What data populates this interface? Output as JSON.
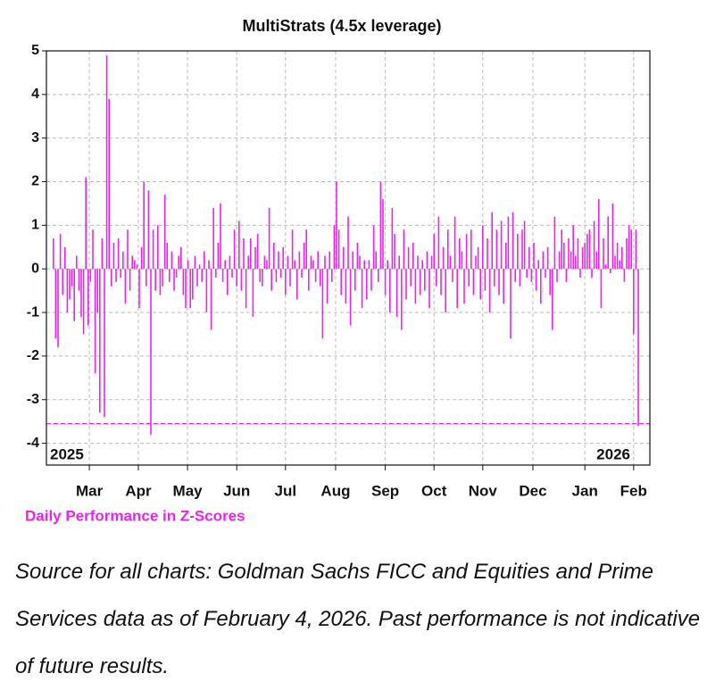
{
  "chart_data": {
    "type": "bar",
    "title": "MultiStrats (4.5x leverage)",
    "axis_label": "Daily Performance in Z-Scores",
    "year_labels": [
      "2025",
      "2026"
    ],
    "source": "Source for all charts: Goldman Sachs FICC and Equities and Prime Services data as of February 4, 2026. Past performance is not indicative of future results.",
    "color": "#ee22ee",
    "reference_line": -3.55,
    "grid": true,
    "xlim": [
      0,
      260
    ],
    "ylim": [
      -4.5,
      5
    ],
    "yticks": [
      -4,
      -3,
      -2,
      -1,
      0,
      1,
      2,
      3,
      4,
      5
    ],
    "xticks": [
      {
        "value": 18.5,
        "label": "Mar"
      },
      {
        "value": 39.6,
        "label": "Apr"
      },
      {
        "value": 60.8,
        "label": "May"
      },
      {
        "value": 82,
        "label": "Jun"
      },
      {
        "value": 103,
        "label": "Jul"
      },
      {
        "value": 124.6,
        "label": "Aug"
      },
      {
        "value": 146,
        "label": "Sep"
      },
      {
        "value": 167,
        "label": "Oct"
      },
      {
        "value": 188,
        "label": "Nov"
      },
      {
        "value": 209.6,
        "label": "Dec"
      },
      {
        "value": 232,
        "label": "Jan"
      },
      {
        "value": 253,
        "label": "Feb"
      }
    ],
    "x": [
      3,
      4,
      5,
      6,
      7,
      8,
      9,
      10,
      11,
      12,
      13,
      14,
      15,
      16,
      17,
      18,
      19,
      20,
      21,
      22,
      23,
      24,
      25,
      26,
      27,
      28,
      29,
      30,
      31,
      32,
      33,
      34,
      35,
      36,
      37,
      38,
      39,
      40,
      41,
      42,
      43,
      44,
      45,
      46,
      47,
      48,
      49,
      50,
      51,
      52,
      53,
      54,
      55,
      56,
      57,
      58,
      59,
      60,
      61,
      62,
      63,
      64,
      65,
      66,
      67,
      68,
      69,
      70,
      71,
      72,
      73,
      74,
      75,
      76,
      77,
      78,
      79,
      80,
      81,
      82,
      83,
      84,
      85,
      86,
      87,
      88,
      89,
      90,
      91,
      92,
      93,
      94,
      95,
      96,
      97,
      98,
      99,
      100,
      101,
      102,
      103,
      104,
      105,
      106,
      107,
      108,
      109,
      110,
      111,
      112,
      113,
      114,
      115,
      116,
      117,
      118,
      119,
      120,
      121,
      122,
      123,
      124,
      125,
      126,
      127,
      128,
      129,
      130,
      131,
      132,
      133,
      134,
      135,
      136,
      137,
      138,
      139,
      140,
      141,
      142,
      143,
      144,
      145,
      146,
      147,
      148,
      149,
      150,
      151,
      152,
      153,
      154,
      155,
      156,
      157,
      158,
      159,
      160,
      161,
      162,
      163,
      164,
      165,
      166,
      167,
      168,
      169,
      170,
      171,
      172,
      173,
      174,
      175,
      176,
      177,
      178,
      179,
      180,
      181,
      182,
      183,
      184,
      185,
      186,
      187,
      188,
      189,
      190,
      191,
      192,
      193,
      194,
      195,
      196,
      197,
      198,
      199,
      200,
      201,
      202,
      203,
      204,
      205,
      206,
      207,
      208,
      209,
      210,
      211,
      212,
      213,
      214,
      215,
      216,
      217,
      218,
      219,
      220,
      221,
      222,
      223,
      224,
      225,
      226,
      227,
      228,
      229,
      230,
      231,
      232,
      233,
      234,
      235,
      236,
      237,
      238,
      239,
      240,
      241,
      242,
      243,
      244,
      245,
      246,
      247,
      248,
      249,
      250,
      251,
      252,
      253,
      254,
      255
    ],
    "values": [
      0.7,
      -1.6,
      -1.8,
      0.8,
      -0.6,
      0.5,
      -1.0,
      -0.7,
      -0.4,
      -1.2,
      0.3,
      -0.5,
      -1.1,
      -1.5,
      2.1,
      -1.3,
      -0.3,
      0.9,
      -2.4,
      -1.0,
      -3.3,
      0.7,
      -3.4,
      4.9,
      3.9,
      -0.4,
      0.6,
      -0.3,
      0.7,
      -0.2,
      0.4,
      -0.8,
      0.9,
      -0.5,
      0.3,
      0.2,
      0.1,
      -0.9,
      0.5,
      2.0,
      -0.4,
      1.8,
      -3.8,
      0.9,
      -0.5,
      1.0,
      -0.6,
      -0.4,
      1.7,
      0.6,
      -0.3,
      0.4,
      -0.5,
      -0.2,
      0.3,
      0.5,
      -0.6,
      -0.9,
      0.2,
      -0.9,
      -0.7,
      0.3,
      -0.4,
      0.1,
      -0.3,
      0.4,
      -1.0,
      0.2,
      -1.4,
      1.4,
      -0.2,
      0.6,
      1.5,
      -0.3,
      0.2,
      -0.6,
      0.3,
      -0.2,
      0.9,
      -0.4,
      1.1,
      -0.5,
      0.7,
      -0.9,
      0.3,
      0.7,
      -1.1,
      0.5,
      0.8,
      -0.3,
      -0.4,
      0.3,
      0.2,
      1.4,
      -0.5,
      0.6,
      -0.3,
      0.4,
      -0.2,
      0.5,
      -0.6,
      0.3,
      -0.4,
      0.9,
      0.2,
      -0.7,
      0.4,
      -0.2,
      0.6,
      0.9,
      -0.5,
      0.3,
      0.2,
      -0.3,
      0.4,
      -0.4,
      -1.6,
      0.3,
      -0.8,
      0.4,
      -0.3,
      1.0,
      2.0,
      0.9,
      -0.6,
      0.5,
      -0.8,
      1.2,
      -1.3,
      0.4,
      -0.5,
      0.6,
      0.3,
      -0.9,
      0.2,
      -0.7,
      0.2,
      -0.5,
      1.0,
      0.4,
      -0.3,
      2.0,
      1.6,
      -0.6,
      0.2,
      -1.0,
      1.4,
      0.8,
      -1.1,
      0.3,
      -1.4,
      0.9,
      -0.7,
      0.5,
      -0.4,
      0.6,
      -0.8,
      0.3,
      -0.6,
      0.2,
      -0.5,
      0.4,
      -0.9,
      0.3,
      0.8,
      -0.4,
      1.2,
      -0.6,
      0.5,
      -1.0,
      0.9,
      0.3,
      -0.3,
      1.2,
      -0.9,
      0.7,
      0.4,
      -0.8,
      0.8,
      -0.4,
      0.9,
      -0.6,
      0.3,
      0.5,
      -0.7,
      1.0,
      -0.5,
      0.7,
      -1.0,
      1.3,
      -0.4,
      0.9,
      -0.6,
      1.1,
      -0.8,
      0.6,
      1.2,
      -1.6,
      1.3,
      -0.3,
      0.8,
      -0.4,
      0.9,
      1.1,
      -0.2,
      0.5,
      -0.3,
      0.6,
      -0.5,
      0.2,
      -0.8,
      0.4,
      -0.2,
      0.5,
      -0.6,
      -1.4,
      1.2,
      -0.3,
      0.4,
      0.9,
      0.6,
      -0.3,
      0.7,
      0.4,
      1.0,
      0.3,
      0.7,
      -0.2,
      0.5,
      0.6,
      0.8,
      0.9,
      -0.2,
      1.1,
      0.4,
      1.6,
      -0.9,
      0.7,
      0.1,
      1.2,
      -0.1,
      1.5,
      0.3,
      0.6,
      0.2,
      0.5,
      -0.3,
      0.7,
      1.0,
      0.9,
      -1.5,
      0.9,
      -3.6
    ]
  }
}
